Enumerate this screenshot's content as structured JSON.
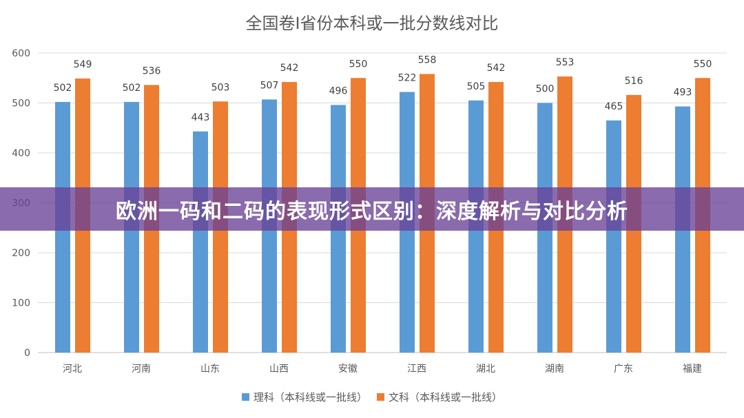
{
  "chart_data": {
    "type": "bar",
    "title": "全国卷Ⅰ省份本科或一批分数线对比",
    "categories": [
      "河北",
      "河南",
      "山东",
      "山西",
      "安徽",
      "江西",
      "湖北",
      "湖南",
      "广东",
      "福建"
    ],
    "series": [
      {
        "name": "理科（本科线或一批线）",
        "color": "#5B9BD5",
        "values": [
          502,
          502,
          443,
          507,
          496,
          522,
          505,
          500,
          465,
          493
        ]
      },
      {
        "name": "文科（本科线或一批线）",
        "color": "#ED7D31",
        "values": [
          549,
          536,
          503,
          542,
          550,
          558,
          542,
          553,
          516,
          550
        ]
      }
    ],
    "ylim": [
      0,
      600
    ],
    "yticks": [
      0,
      100,
      200,
      300,
      400,
      500,
      600
    ],
    "grid": true,
    "legend": "bottom",
    "xlabel": "",
    "ylabel": ""
  },
  "banner": {
    "text": "欧洲一码和二码的表现形式区别：深度解析与对比分析",
    "color": "#6941A0"
  }
}
